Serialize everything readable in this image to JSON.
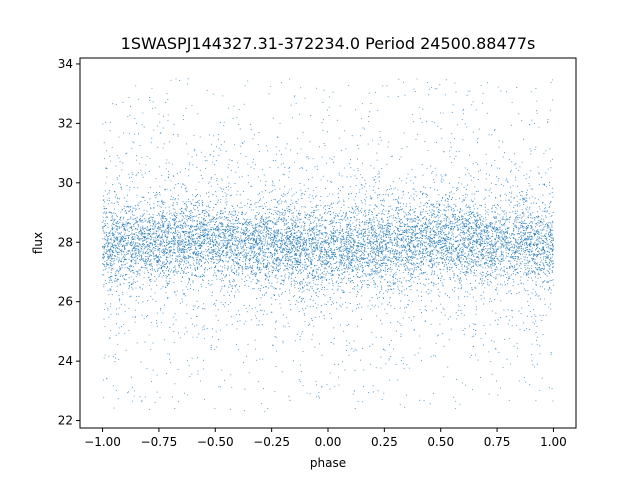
{
  "chart_data": {
    "type": "scatter",
    "title": "1SWASPJ144327.31-372234.0 Period 24500.88477s",
    "xlabel": "phase",
    "ylabel": "flux",
    "xlim": [
      -1.1,
      1.1
    ],
    "ylim": [
      21.75,
      34.2
    ],
    "xticks": [
      -1.0,
      -0.75,
      -0.5,
      -0.25,
      0.0,
      0.25,
      0.5,
      0.75,
      1.0
    ],
    "xtick_labels": [
      "−1.00",
      "−0.75",
      "−0.50",
      "−0.25",
      "0.00",
      "0.25",
      "0.50",
      "0.75",
      "1.00"
    ],
    "yticks": [
      22,
      24,
      26,
      28,
      30,
      32,
      34
    ],
    "ytick_labels": [
      "22",
      "24",
      "26",
      "28",
      "30",
      "32",
      "34"
    ],
    "grid": false,
    "legend": "none",
    "point_color": "#1f77b4",
    "series": [
      {
        "x_range": [
          -1.0,
          1.0
        ],
        "y_range": [
          22.3,
          33.5
        ],
        "core_band_center": [
          [
            -1.0,
            27.9
          ],
          [
            -0.75,
            28.0
          ],
          [
            -0.5,
            28.1
          ],
          [
            -0.25,
            27.9
          ],
          [
            0.0,
            27.8
          ],
          [
            0.25,
            27.9
          ],
          [
            0.5,
            28.1
          ],
          [
            0.75,
            28.0
          ],
          [
            1.0,
            27.9
          ]
        ],
        "core_band_halfwidth": 1.2,
        "outer_band_halfwidth": 2.4
      }
    ]
  }
}
